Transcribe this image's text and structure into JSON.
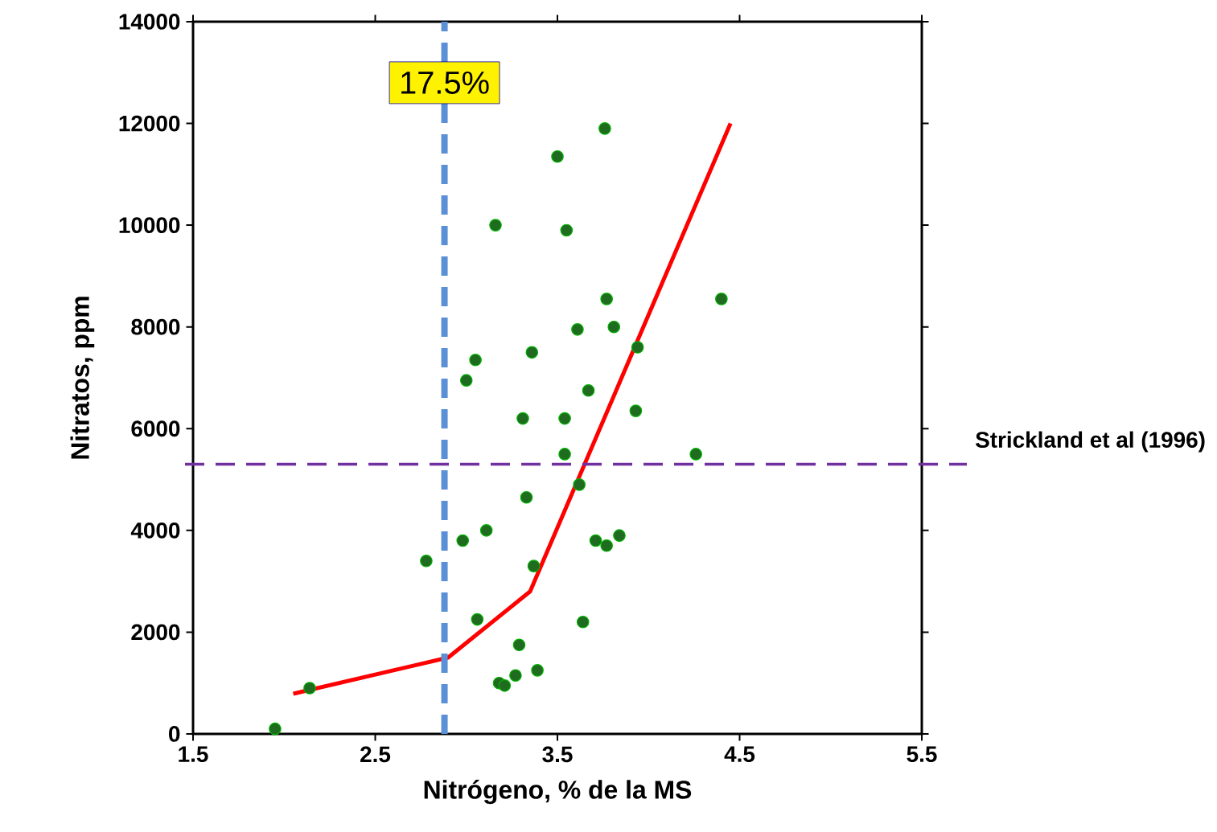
{
  "chart_data": {
    "type": "scatter",
    "xlabel": "Nitrógeno, % de la MS",
    "ylabel": "Nitratos, ppm",
    "xlim": [
      1.5,
      5.5
    ],
    "xticks": [
      1.5,
      2.5,
      3.5,
      4.5,
      5.5
    ],
    "ylim": [
      0,
      14000
    ],
    "yticks": [
      0,
      2000,
      4000,
      6000,
      8000,
      10000,
      12000,
      14000
    ],
    "grid": false,
    "annotations": [
      {
        "text": "17.5%",
        "x": 2.88,
        "y": 12800
      }
    ],
    "series": [
      {
        "color": "#1f6b1f",
        "x": [
          1.95,
          2.14,
          2.78,
          2.98,
          3.0,
          3.05,
          3.06,
          3.11,
          3.16,
          3.18,
          3.21,
          3.27,
          3.29,
          3.31,
          3.33,
          3.36,
          3.37,
          3.39,
          3.5,
          3.54,
          3.54,
          3.55,
          3.61,
          3.62,
          3.64,
          3.67,
          3.71,
          3.76,
          3.77,
          3.77,
          3.81,
          3.84,
          3.93,
          3.94,
          4.26,
          4.4
        ],
        "values": [
          100,
          900,
          3400,
          3800,
          6950,
          7350,
          2250,
          4000,
          10000,
          1000,
          950,
          1150,
          1750,
          6200,
          4650,
          7500,
          3300,
          1250,
          11350,
          6200,
          5500,
          9900,
          7950,
          4900,
          2200,
          6750,
          3800,
          11900,
          8550,
          3700,
          8000,
          3900,
          6350,
          7600,
          5500,
          8550
        ]
      },
      {
        "type": "line",
        "color": "#ff0000",
        "x": [
          2.05,
          2.9,
          3.35,
          4.45
        ],
        "values": [
          790,
          1500,
          2800,
          12000
        ]
      }
    ],
    "ref_lines": [
      {
        "axis": "x",
        "value": 2.88,
        "color": "#5b8fd6",
        "line_style": "dashed"
      },
      {
        "axis": "y",
        "value": 5300,
        "label": "Strickland et al (1996)",
        "color": "#7030a0",
        "line_style": "dashed"
      }
    ]
  }
}
